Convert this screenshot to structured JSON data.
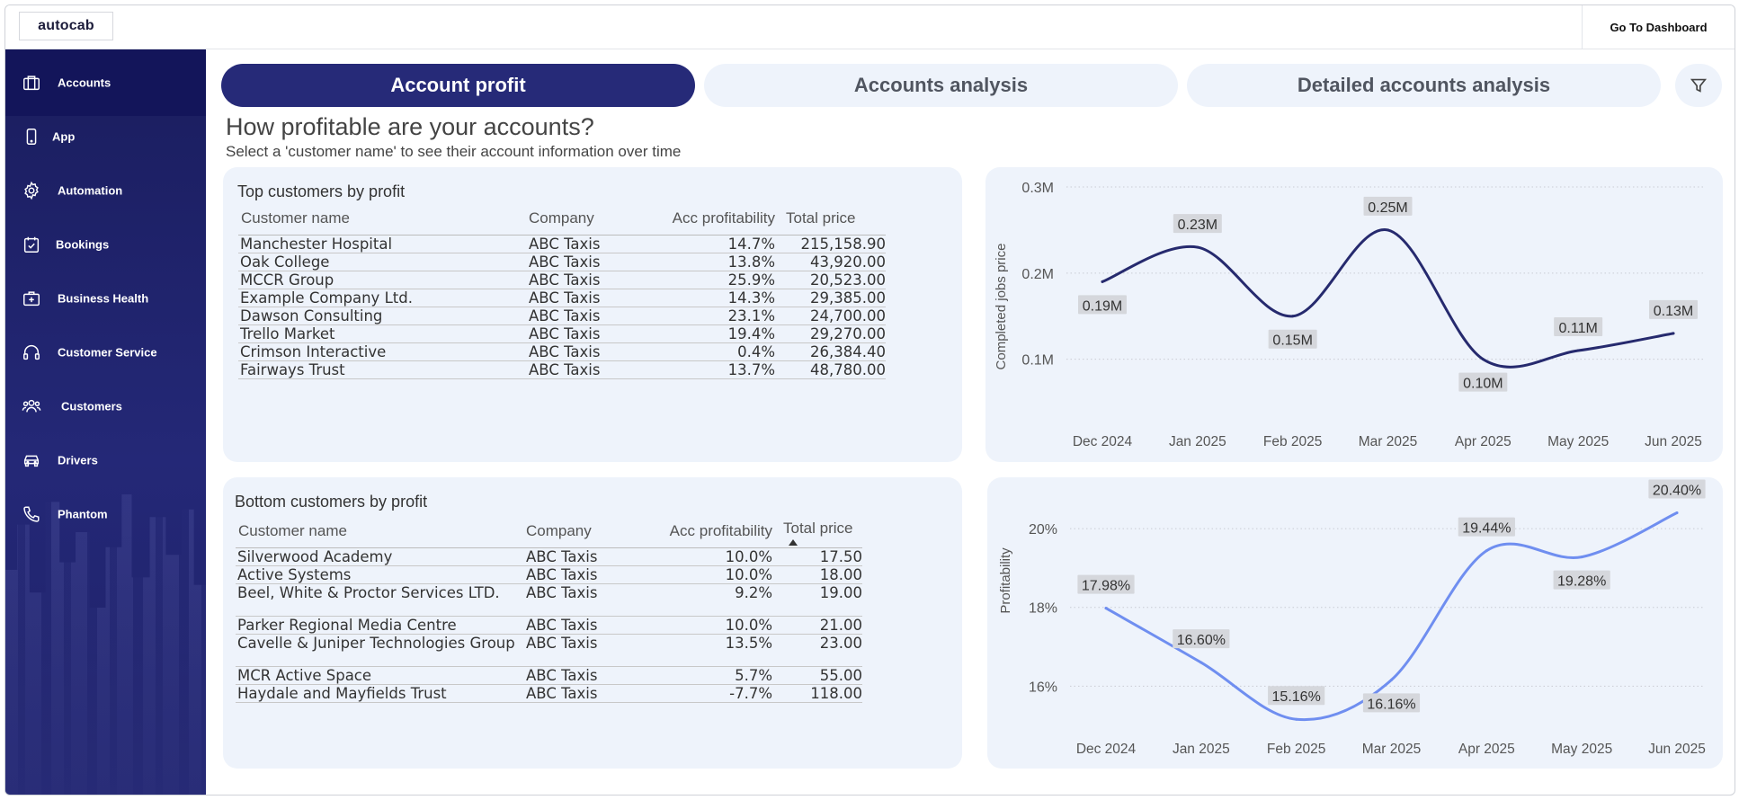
{
  "app": {
    "logo_text": "autocab",
    "goto_label": "Go To Dashboard"
  },
  "sidebar": {
    "items": [
      {
        "label": "Accounts",
        "icon": "briefcase-icon"
      },
      {
        "label": "App",
        "icon": "phone-icon"
      },
      {
        "label": "Automation",
        "icon": "gear-icon"
      },
      {
        "label": "Bookings",
        "icon": "calendar-check-icon"
      },
      {
        "label": "Business Health",
        "icon": "medical-kit-icon"
      },
      {
        "label": "Customer Service",
        "icon": "headset-icon"
      },
      {
        "label": "Customers",
        "icon": "users-icon"
      },
      {
        "label": "Drivers",
        "icon": "car-icon"
      },
      {
        "label": "Phantom",
        "icon": "telephone-icon"
      }
    ]
  },
  "tabs": [
    {
      "label": "Account profit"
    },
    {
      "label": "Accounts analysis"
    },
    {
      "label": "Detailed accounts analysis"
    }
  ],
  "page": {
    "title": "How profitable are your accounts?",
    "subtitle": "Select a 'customer name' to see their account information over time"
  },
  "top_table": {
    "title": "Top customers by profit",
    "headers": [
      "Customer name",
      "Company",
      "Acc profitability",
      "Total price"
    ],
    "rows": [
      [
        "Manchester Hospital",
        "ABC Taxis",
        "14.7%",
        "215,158.90"
      ],
      [
        "Oak College",
        "ABC Taxis",
        "13.8%",
        "43,920.00"
      ],
      [
        "MCCR Group",
        "ABC Taxis",
        "25.9%",
        "20,523.00"
      ],
      [
        "Example Company Ltd.",
        "ABC Taxis",
        "14.3%",
        "29,385.00"
      ],
      [
        "Dawson Consulting",
        "ABC Taxis",
        "23.1%",
        "24,700.00"
      ],
      [
        "Trello Market",
        "ABC Taxis",
        "19.4%",
        "29,270.00"
      ],
      [
        "Crimson Interactive",
        "ABC Taxis",
        "0.4%",
        "26,384.40"
      ],
      [
        "Fairways Trust",
        "ABC Taxis",
        "13.7%",
        "48,780.00"
      ]
    ]
  },
  "bottom_table": {
    "title": "Bottom customers by profit",
    "headers": [
      "Customer name",
      "Company",
      "Acc profitability",
      "Total price"
    ],
    "rows": [
      [
        "Silverwood Academy",
        "ABC Taxis",
        "10.0%",
        "17.50"
      ],
      [
        "Active Systems",
        "ABC Taxis",
        "10.0%",
        "18.00"
      ],
      [
        "Beel, White & Proctor Services LTD.",
        "ABC Taxis",
        "9.2%",
        "19.00"
      ],
      [
        "Parker Regional Media Centre",
        "ABC Taxis",
        "10.0%",
        "21.00"
      ],
      [
        "Cavelle & Juniper Technologies Group",
        "ABC Taxis",
        "13.5%",
        "23.00"
      ],
      [
        "MCR Active Space",
        "ABC Taxis",
        "5.7%",
        "55.00"
      ],
      [
        "Haydale and Mayfields Trust",
        "ABC Taxis",
        "-7.7%",
        "118.00"
      ]
    ]
  },
  "colors": {
    "navy": "#262a78",
    "line1": "#262a6e",
    "line2": "#6f8ef0",
    "card": "#eef3fb"
  },
  "chart_data": [
    {
      "type": "line",
      "title": "",
      "xlabel": "",
      "ylabel": "Completed jobs price",
      "categories": [
        "Dec 2024",
        "Jan 2025",
        "Feb 2025",
        "Mar 2025",
        "Apr 2025",
        "May 2025",
        "Jun 2025"
      ],
      "values": [
        0.19,
        0.23,
        0.15,
        0.25,
        0.1,
        0.11,
        0.13
      ],
      "data_labels": [
        "0.19M",
        "0.23M",
        "0.15M",
        "0.25M",
        "0.10M",
        "0.11M",
        "0.13M"
      ],
      "yticks": [
        0.1,
        0.2,
        0.3
      ],
      "ytick_labels": [
        "0.1M",
        "0.2M",
        "0.3M"
      ],
      "ylim": [
        0.085,
        0.3
      ],
      "grid": true
    },
    {
      "type": "line",
      "title": "",
      "xlabel": "",
      "ylabel": "Profitability",
      "categories": [
        "Dec 2024",
        "Jan 2025",
        "Feb 2025",
        "Mar 2025",
        "Apr 2025",
        "May 2025",
        "Jun 2025"
      ],
      "values": [
        17.98,
        16.6,
        15.16,
        16.16,
        19.44,
        19.28,
        20.4
      ],
      "data_labels": [
        "17.98%",
        "16.60%",
        "15.16%",
        "16.16%",
        "19.44%",
        "19.28%",
        "20.40%"
      ],
      "yticks": [
        16,
        18,
        20
      ],
      "ytick_labels": [
        "16%",
        "18%",
        "20%"
      ],
      "ylim": [
        14.8,
        20.8
      ],
      "grid": true
    }
  ]
}
